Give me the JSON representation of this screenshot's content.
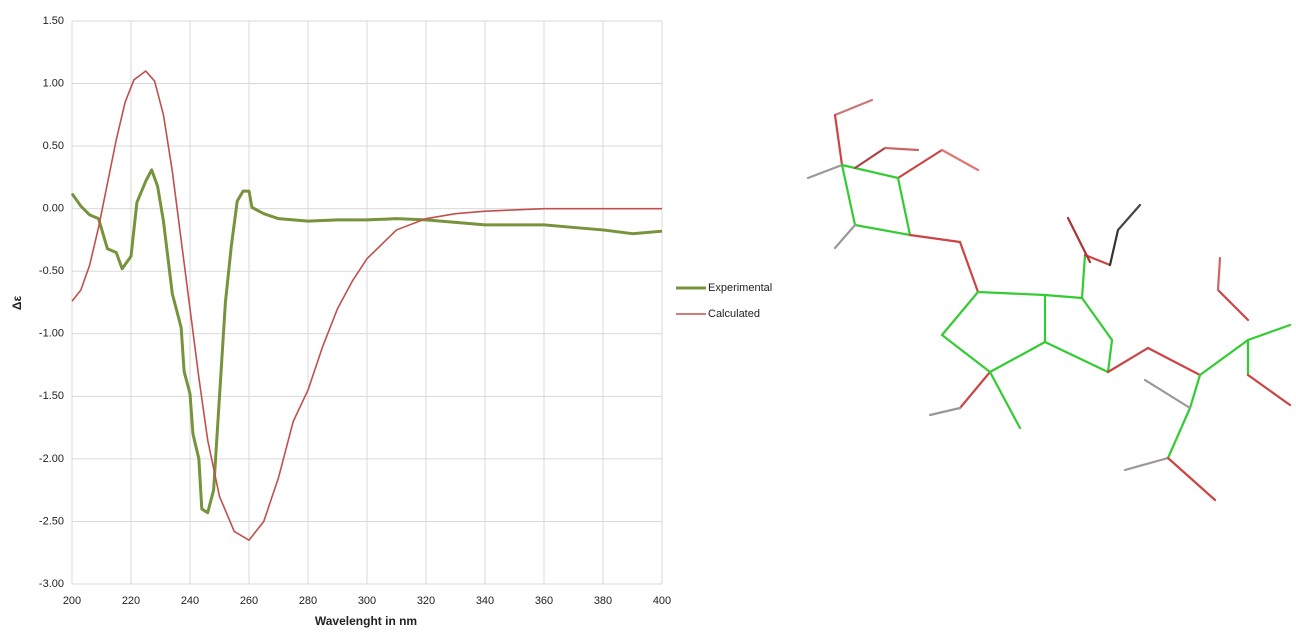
{
  "chart_data": {
    "type": "line",
    "x_label": "Wavelenght in nm",
    "y_label": "Δε",
    "xlim": [
      200,
      400
    ],
    "xticks": [
      200,
      220,
      240,
      260,
      280,
      300,
      320,
      340,
      360,
      380,
      400
    ],
    "ylim": [
      -3,
      1.5
    ],
    "yticks": [
      {
        "value": -3,
        "label": "-3.00"
      },
      {
        "value": -2.5,
        "label": "-2.50"
      },
      {
        "value": -2,
        "label": "-2.00"
      },
      {
        "value": -1.5,
        "label": "-1.50"
      },
      {
        "value": -1,
        "label": "-1.00"
      },
      {
        "value": -0.5,
        "label": "-0.50"
      },
      {
        "value": 0,
        "label": "0.00"
      },
      {
        "value": 0.5,
        "label": "0.50"
      },
      {
        "value": 1,
        "label": "1.00"
      },
      {
        "value": 1.5,
        "label": "1.50"
      }
    ],
    "grid": true,
    "series": [
      {
        "name": "Experimental",
        "color": "#77933c",
        "x": [
          200,
          203,
          206,
          209,
          212,
          215,
          217,
          220,
          222,
          225,
          227,
          229,
          231,
          234,
          237,
          238,
          240,
          241,
          243,
          244,
          246,
          248,
          250,
          252,
          254,
          256,
          258,
          260,
          261,
          265,
          270,
          280,
          290,
          300,
          310,
          320,
          330,
          340,
          350,
          360,
          370,
          380,
          390,
          400
        ],
        "values": [
          0.12,
          0.02,
          -0.05,
          -0.08,
          -0.32,
          -0.35,
          -0.48,
          -0.38,
          0.05,
          0.22,
          0.31,
          0.18,
          -0.1,
          -0.68,
          -0.95,
          -1.3,
          -1.48,
          -1.8,
          -2.0,
          -2.4,
          -2.43,
          -2.25,
          -1.5,
          -0.75,
          -0.3,
          0.06,
          0.14,
          0.14,
          0.01,
          -0.04,
          -0.08,
          -0.1,
          -0.09,
          -0.09,
          -0.08,
          -0.09,
          -0.11,
          -0.13,
          -0.13,
          -0.13,
          -0.15,
          -0.17,
          -0.2,
          -0.18
        ]
      },
      {
        "name": "Calculated",
        "color": "#c0504d",
        "x": [
          200,
          203,
          206,
          209,
          212,
          215,
          218,
          221,
          225,
          228,
          231,
          234,
          237,
          240,
          243,
          246,
          250,
          255,
          260,
          265,
          270,
          275,
          280,
          285,
          290,
          295,
          300,
          310,
          320,
          330,
          340,
          360,
          400
        ],
        "values": [
          -0.74,
          -0.65,
          -0.45,
          -0.15,
          0.2,
          0.55,
          0.85,
          1.03,
          1.1,
          1.02,
          0.75,
          0.3,
          -0.25,
          -0.8,
          -1.35,
          -1.85,
          -2.3,
          -2.58,
          -2.65,
          -2.5,
          -2.15,
          -1.7,
          -1.45,
          -1.1,
          -0.8,
          -0.58,
          -0.4,
          -0.17,
          -0.08,
          -0.04,
          -0.02,
          0,
          0
        ]
      }
    ]
  }
}
